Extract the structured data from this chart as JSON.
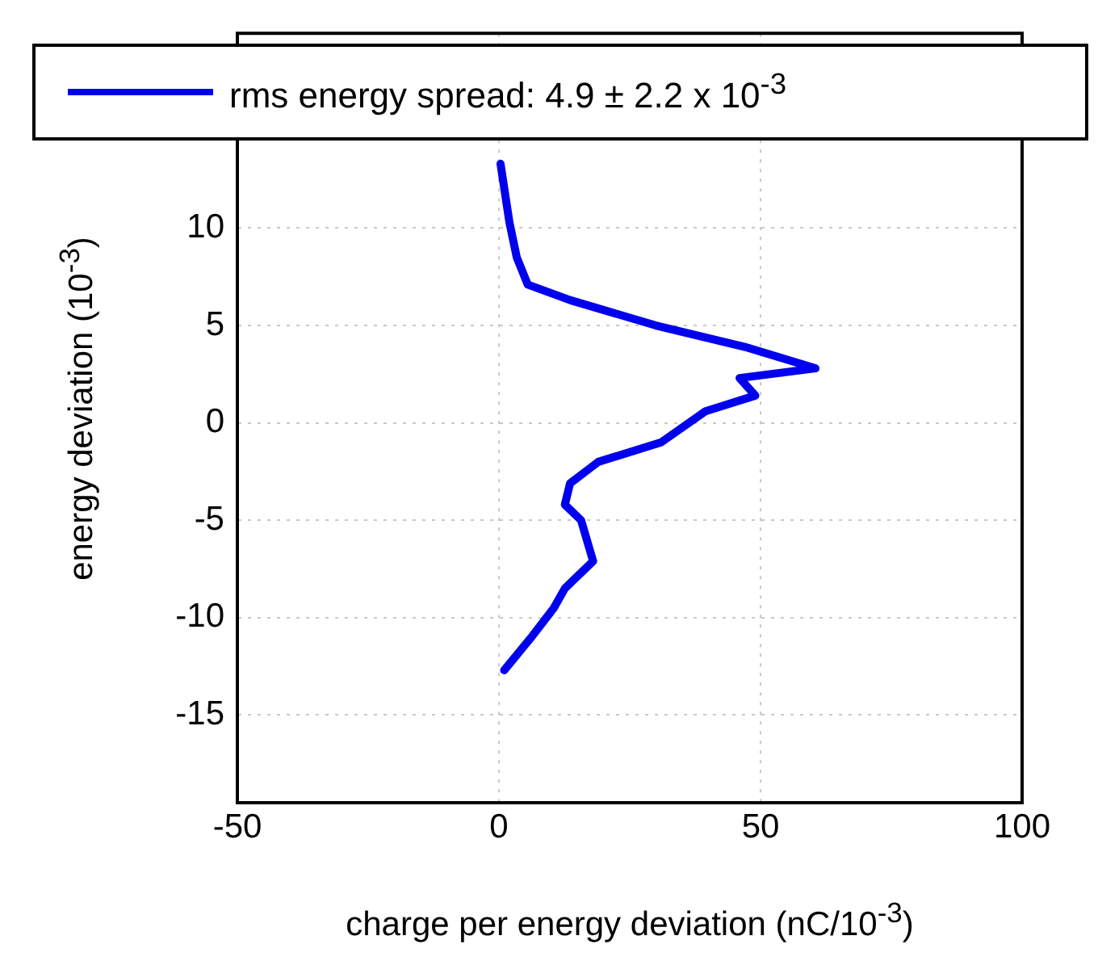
{
  "chart_data": {
    "type": "line",
    "xlabel": "charge per energy deviation (nC/10$^{-3}$)",
    "ylabel": "energy deviation (10$^{-3}$)",
    "xlim": [
      -50,
      100
    ],
    "xticks": [
      -50,
      0,
      50,
      100
    ],
    "ylim": [
      -19.5,
      20
    ],
    "yticks": [
      -15,
      -10,
      -5,
      0,
      5,
      10
    ],
    "grid": true,
    "legend": "top",
    "line_style": "solid",
    "marker": "none",
    "series": [
      {
        "name": "rms energy spread: 4.9 ± 2.2 x 10$^{-3}$",
        "color": "#0000ee",
        "x": [
          0.3,
          2,
          3.4,
          5.5,
          13.6,
          30,
          47,
          60.5,
          46,
          49,
          39.5,
          31,
          19,
          13.6,
          12.6,
          15.7,
          18,
          12.6,
          10.5,
          6.5,
          1
        ],
        "values": [
          13.3,
          10.3,
          8.5,
          7.1,
          6.3,
          5,
          3.9,
          2.8,
          2.3,
          1.4,
          0.6,
          -1,
          -2,
          -3.1,
          -4.2,
          -5,
          -7.1,
          -8.5,
          -9.5,
          -10.9,
          -12.7
        ]
      }
    ]
  }
}
